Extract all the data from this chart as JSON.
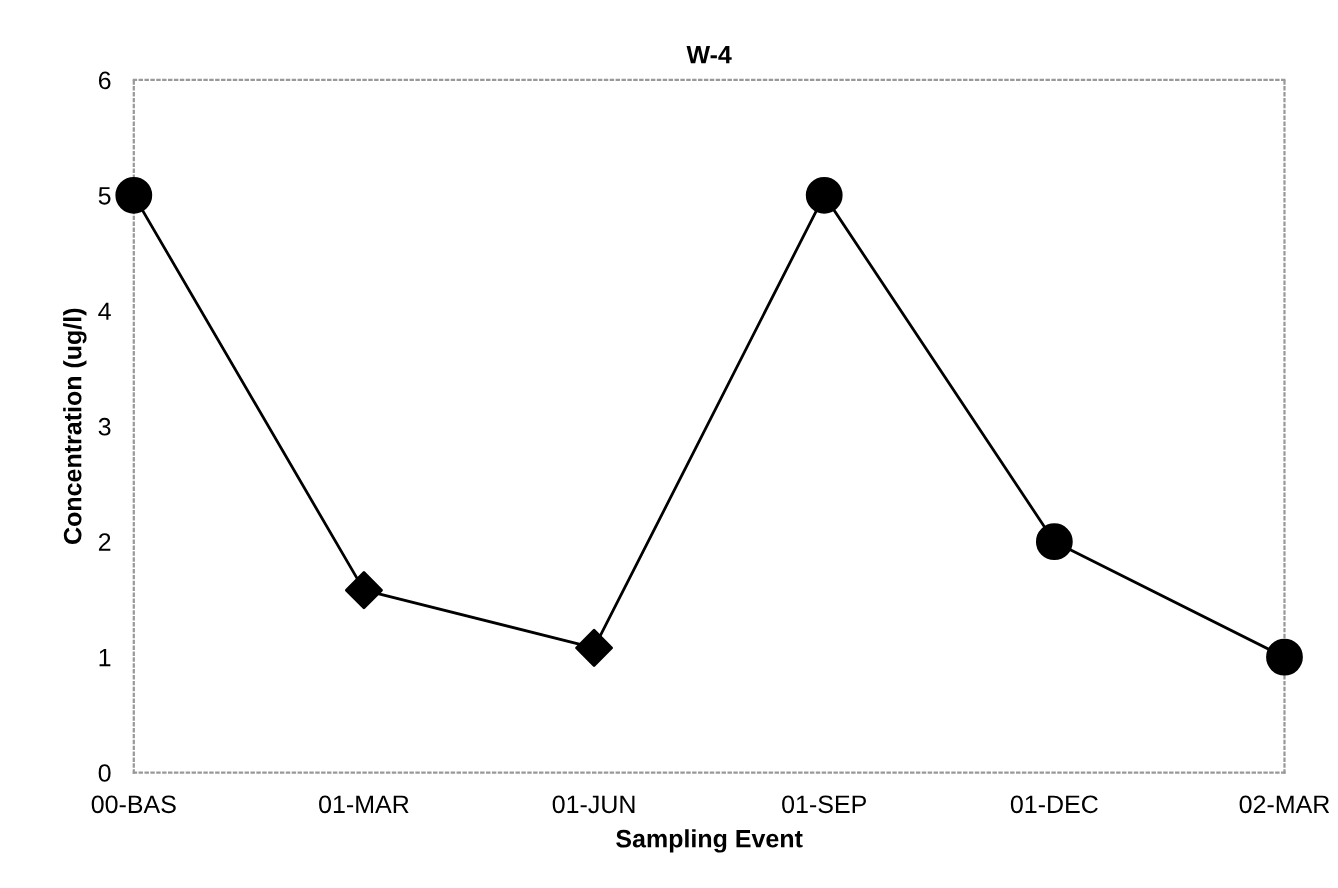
{
  "chart_data": {
    "type": "line",
    "title": "W-4",
    "xlabel": "Sampling Event",
    "ylabel": "Concentration (ug/l)",
    "categories": [
      "00-BAS",
      "01-MAR",
      "01-JUN",
      "01-SEP",
      "01-DEC",
      "02-MAR"
    ],
    "series": [
      {
        "type": "line",
        "marker": "none",
        "color": "#000000",
        "values": [
          5,
          1.58,
          1.08,
          5,
          2,
          1
        ]
      },
      {
        "type": "scatter",
        "marker": "circle",
        "color": "#000000",
        "values": [
          5,
          null,
          null,
          5,
          2,
          1
        ]
      },
      {
        "type": "scatter",
        "marker": "diamond",
        "color": "#000000",
        "values": [
          null,
          1.58,
          1.08,
          null,
          null,
          null
        ]
      }
    ],
    "ylim": [
      0,
      6
    ],
    "yticks": [
      0,
      1,
      2,
      3,
      4,
      5,
      6
    ],
    "grid": false,
    "legend": false
  }
}
